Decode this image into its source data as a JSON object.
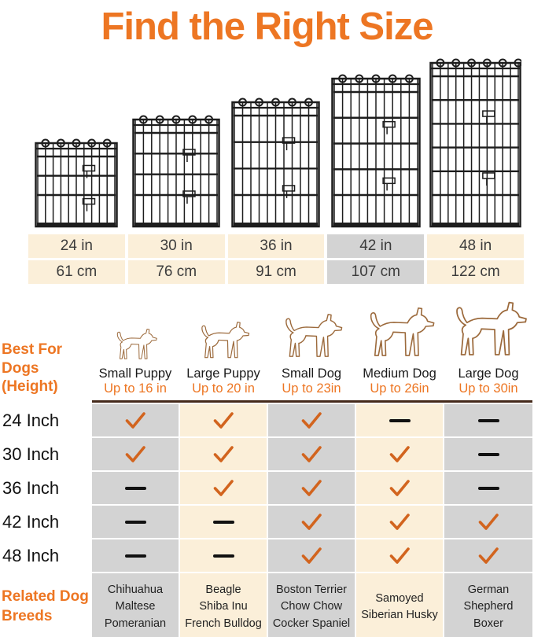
{
  "title": "Find the Right Size",
  "colors": {
    "orange": "#ED7623",
    "check": "#D2641E",
    "cream": "#FBEFD9",
    "gray": "#D3D3D3",
    "header_line": "#44291A",
    "wire": "#1D1D1D",
    "dog_outline": "#9C6A3C"
  },
  "sizes": [
    {
      "inch": "24 in",
      "cm": "61 cm",
      "highlight": false
    },
    {
      "inch": "30 in",
      "cm": "76 cm",
      "highlight": false
    },
    {
      "inch": "36 in",
      "cm": "91 cm",
      "highlight": false
    },
    {
      "inch": "42 in",
      "cm": "107 cm",
      "highlight": true
    },
    {
      "inch": "48 in",
      "cm": "122 cm",
      "highlight": false
    }
  ],
  "dogs": [
    {
      "name": "Small Puppy",
      "height": "Up to 16 in"
    },
    {
      "name": "Large Puppy",
      "height": "Up to 20 in"
    },
    {
      "name": "Small Dog",
      "height": "Up to 23in"
    },
    {
      "name": "Medium Dog",
      "height": "Up to 26in"
    },
    {
      "name": "Large Dog",
      "height": "Up to 30in"
    }
  ],
  "best_for_label": "Best For Dogs\n(Height)",
  "rows": [
    {
      "label": "24 Inch",
      "marks": [
        "check",
        "check",
        "check",
        "dash",
        "dash"
      ]
    },
    {
      "label": "30 Inch",
      "marks": [
        "check",
        "check",
        "check",
        "check",
        "dash"
      ]
    },
    {
      "label": "36 Inch",
      "marks": [
        "dash",
        "check",
        "check",
        "check",
        "dash"
      ]
    },
    {
      "label": "42 Inch",
      "marks": [
        "dash",
        "dash",
        "check",
        "check",
        "check"
      ]
    },
    {
      "label": "48 Inch",
      "marks": [
        "dash",
        "dash",
        "check",
        "check",
        "check"
      ]
    }
  ],
  "breeds_label": "Related Dog\nBreeds",
  "breeds": [
    [
      "Chihuahua",
      "Maltese",
      "Pomeranian"
    ],
    [
      "Beagle",
      "Shiba Inu",
      "French Bulldog"
    ],
    [
      "Boston Terrier",
      "Chow Chow",
      "Cocker Spaniel"
    ],
    [
      "Samoyed",
      "Siberian Husky"
    ],
    [
      "German Shepherd",
      "Boxer"
    ]
  ],
  "chart_data": {
    "type": "table",
    "title": "Find the Right Size",
    "row_labels": [
      "24 Inch",
      "30 Inch",
      "36 Inch",
      "42 Inch",
      "48 Inch"
    ],
    "row_sizes_cm": [
      61,
      76,
      91,
      107,
      122
    ],
    "highlighted_size": "42 in",
    "column_labels": [
      "Small Puppy (Up to 16 in)",
      "Large Puppy (Up to 20 in)",
      "Small Dog (Up to 23in)",
      "Medium Dog (Up to 26in)",
      "Large Dog (Up to 30in)"
    ],
    "values": [
      [
        1,
        1,
        1,
        0,
        0
      ],
      [
        1,
        1,
        1,
        1,
        0
      ],
      [
        0,
        1,
        1,
        1,
        0
      ],
      [
        0,
        0,
        1,
        1,
        1
      ],
      [
        0,
        0,
        1,
        1,
        1
      ]
    ],
    "legend": {
      "1": "check (suitable)",
      "0": "dash (not suitable)"
    }
  }
}
